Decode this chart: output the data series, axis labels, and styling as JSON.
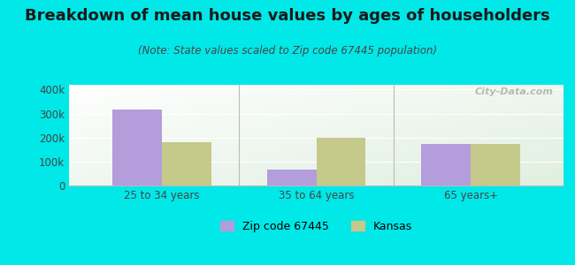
{
  "title": "Breakdown of mean house values by ages of householders",
  "subtitle": "(Note: State values scaled to Zip code 67445 population)",
  "categories": [
    "25 to 34 years",
    "35 to 64 years",
    "65 years+"
  ],
  "zip_values": [
    318000,
    68000,
    172000
  ],
  "kansas_values": [
    180000,
    200000,
    172000
  ],
  "zip_color": "#b39ddb",
  "kansas_color": "#c5c98a",
  "zip_label": "Zip code 67445",
  "kansas_label": "Kansas",
  "background_color": "#00e8e8",
  "ylim": [
    0,
    420000
  ],
  "yticks": [
    0,
    100000,
    200000,
    300000,
    400000
  ],
  "ytick_labels": [
    "0",
    "100k",
    "200k",
    "300k",
    "400k"
  ],
  "watermark": "City-Data.com",
  "bar_width": 0.32,
  "title_fontsize": 13,
  "subtitle_fontsize": 8.5,
  "axis_fontsize": 8.5,
  "legend_fontsize": 9
}
